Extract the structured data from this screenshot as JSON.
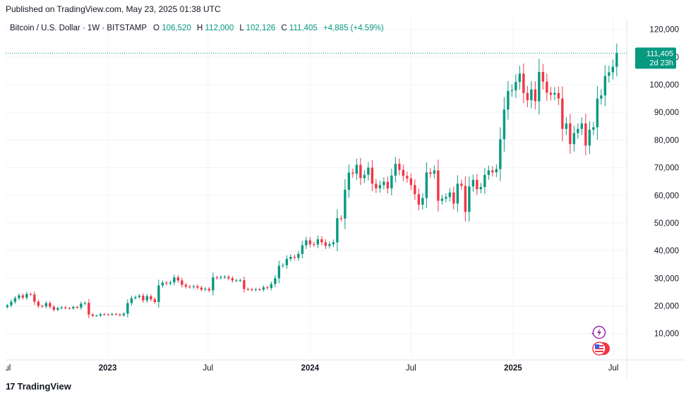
{
  "published": "Published on TradingView.com, May 23, 2025 01:38 UTC",
  "header": {
    "symbol": "Bitcoin / U.S. Dollar · 1W · BITSTAMP",
    "o_label": "O",
    "o_val": "106,520",
    "h_label": "H",
    "h_val": "112,000",
    "l_label": "L",
    "l_val": "102,126",
    "c_label": "C",
    "c_val": "111,405",
    "change": "+4,885 (+4.59%)"
  },
  "price_tag": {
    "price": "111,405",
    "countdown": "2d 23h"
  },
  "footer": {
    "logo_mark": "17",
    "brand": "TradingView"
  },
  "colors": {
    "up": "#089981",
    "down": "#f23645",
    "grid": "#f0f3fa",
    "axis_text": "#131722"
  },
  "icons": [
    "lightning-event-icon",
    "us-flag-icon"
  ],
  "chart_data": {
    "type": "candlestick",
    "timeframe": "1W",
    "ylim": [
      2000,
      124000
    ],
    "y_ticks": [
      10000,
      20000,
      30000,
      40000,
      50000,
      60000,
      70000,
      80000,
      90000,
      100000,
      110000,
      120000
    ],
    "y_tick_labels": [
      "10,000",
      "20,000",
      "30,000",
      "40,000",
      "50,000",
      "60,000",
      "70,000",
      "80,000",
      "90,000",
      "100,000",
      "110,000",
      "120,000"
    ],
    "x_range": [
      "2022-07-01",
      "2025-07-25"
    ],
    "x_ticks": [
      {
        "date": "2022-07-01",
        "label": "Jul",
        "bold": false
      },
      {
        "date": "2023-01-01",
        "label": "2023",
        "bold": true
      },
      {
        "date": "2023-07-01",
        "label": "Jul",
        "bold": false
      },
      {
        "date": "2024-01-01",
        "label": "2024",
        "bold": true
      },
      {
        "date": "2024-07-01",
        "label": "Jul",
        "bold": false
      },
      {
        "date": "2025-01-01",
        "label": "2025",
        "bold": true
      },
      {
        "date": "2025-07-01",
        "label": "Jul",
        "bold": false
      }
    ],
    "start_date": "2022-07-04",
    "closes": [
      20200,
      21500,
      22800,
      23800,
      23000,
      24300,
      24100,
      21500,
      20000,
      19800,
      21000,
      19700,
      18600,
      19200,
      19500,
      19200,
      19100,
      19600,
      19400,
      20800,
      21100,
      16900,
      16400,
      16500,
      17000,
      16900,
      16800,
      17100,
      16900,
      16600,
      17200,
      21000,
      22800,
      23200,
      23700,
      22000,
      23500,
      22400,
      21400,
      27400,
      28400,
      28100,
      28500,
      30300,
      29200,
      27600,
      27000,
      26800,
      27100,
      26600,
      25900,
      26200,
      25600,
      30300,
      30200,
      30400,
      30500,
      30000,
      29200,
      29200,
      29300,
      26100,
      26000,
      25800,
      26000,
      25900,
      26700,
      26500,
      27900,
      30000,
      34500,
      34700,
      37000,
      37700,
      37400,
      38800,
      41900,
      43700,
      42300,
      42200,
      44100,
      43000,
      41700,
      42300,
      43000,
      51700,
      51600,
      62000,
      68200,
      67800,
      71000,
      66200,
      67400,
      70000,
      64200,
      62500,
      63700,
      64900,
      62500,
      67100,
      71400,
      69200,
      67000,
      66100,
      63700,
      60400,
      56600,
      59000,
      68300,
      67800,
      69000,
      58000,
      58800,
      59400,
      61000,
      57000,
      64200,
      63400,
      54000,
      63200,
      65600,
      62200,
      63000,
      67400,
      69000,
      68300,
      69500,
      80300,
      91000,
      97700,
      98000,
      101000,
      104000,
      97000,
      94400,
      98300,
      94000,
      104600,
      101100,
      97100,
      96400,
      97000,
      95000,
      84000,
      86000,
      78500,
      82500,
      84000,
      86000,
      78000,
      83700,
      84600,
      95000,
      96100,
      103200,
      104500,
      106500,
      111405
    ],
    "last_close": 111405
  }
}
